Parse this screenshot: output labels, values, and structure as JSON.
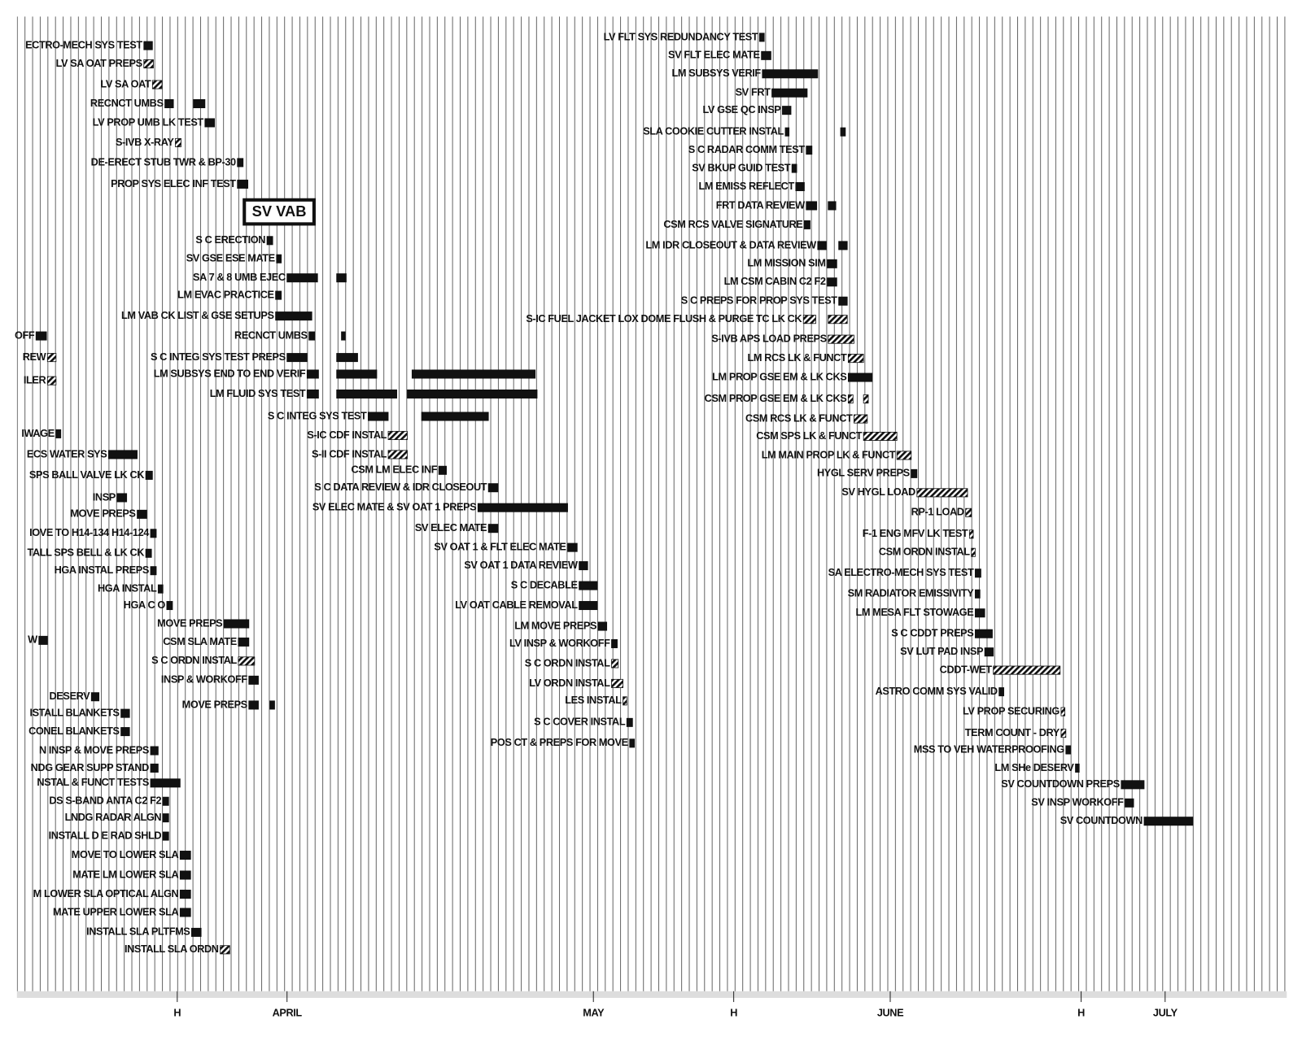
{
  "chart_data": {
    "type": "gantt",
    "stamp": "SV VAB",
    "xlim": [
      0,
      133
    ],
    "bar_color": "#111111",
    "xticks": [
      {
        "value": 16.8,
        "label": "H"
      },
      {
        "value": 28.3,
        "label": "APRIL"
      },
      {
        "value": 60.4,
        "label": "MAY"
      },
      {
        "value": 75.1,
        "label": "H"
      },
      {
        "value": 91.5,
        "label": "JUNE"
      },
      {
        "value": 111.5,
        "label": "H"
      },
      {
        "value": 120.3,
        "label": "JULY"
      }
    ],
    "tasks": [
      {
        "name": "ECTRO-MECH SYS TEST",
        "segments": [
          [
            13.3,
            14.2
          ]
        ]
      },
      {
        "name": "LV SA OAT PREPS",
        "segments": [
          [
            13.3,
            14.3
          ]
        ],
        "hatched": true
      },
      {
        "name": "LV SA OAT",
        "segments": [
          [
            14.2,
            15.2
          ]
        ],
        "hatched": true
      },
      {
        "name": "RECNCT UMBS",
        "segments": [
          [
            15.5,
            16.4
          ],
          [
            18.5,
            19.7
          ]
        ]
      },
      {
        "name": "LV PROP UMB LK TEST",
        "segments": [
          [
            19.7,
            20.7
          ]
        ]
      },
      {
        "name": "S-IVB X-RAY",
        "segments": [
          [
            16.6,
            17.2
          ]
        ],
        "hatched": true
      },
      {
        "name": "DE-ERECT STUB TWR & BP-30",
        "segments": [
          [
            23.1,
            23.7
          ]
        ]
      },
      {
        "name": "PROP SYS ELEC INF TEST",
        "segments": [
          [
            23.1,
            24.2
          ]
        ]
      },
      {
        "name": "S C ERECTION",
        "segments": [
          [
            26.2,
            26.8
          ]
        ]
      },
      {
        "name": "SV GSE ESE MATE",
        "segments": [
          [
            27.2,
            27.7
          ]
        ]
      },
      {
        "name": "SA 7 & 8 UMB EJEC",
        "segments": [
          [
            28.3,
            31.5
          ],
          [
            33.5,
            34.5
          ]
        ]
      },
      {
        "name": "LM EVAC PRACTICE",
        "segments": [
          [
            27.1,
            27.7
          ]
        ]
      },
      {
        "name": "LM VAB CK LIST & GSE SETUPS",
        "segments": [
          [
            27.1,
            30.9
          ]
        ]
      },
      {
        "name": "RECNCT UMBS",
        "segments": [
          [
            30.6,
            31.2
          ],
          [
            34.0,
            34.4
          ]
        ]
      },
      {
        "name": "S C INTEG SYS TEST PREPS",
        "segments": [
          [
            28.3,
            30.4
          ],
          [
            33.5,
            35.7
          ]
        ]
      },
      {
        "name": "LM SUBSYS END TO END VERIF",
        "segments": [
          [
            30.4,
            31.6
          ],
          [
            33.5,
            37.7
          ],
          [
            41.4,
            54.3
          ]
        ]
      },
      {
        "name": "LM FLUID SYS TEST",
        "segments": [
          [
            30.4,
            31.6
          ],
          [
            33.5,
            39.8
          ],
          [
            40.9,
            54.5
          ]
        ]
      },
      {
        "name": "S C INTEG SYS TEST",
        "segments": [
          [
            36.8,
            38.9
          ],
          [
            42.4,
            49.4
          ]
        ]
      },
      {
        "name": "S-IC CDF INSTAL",
        "segments": [
          [
            38.9,
            40.9
          ]
        ],
        "hatched": true
      },
      {
        "name": "S-II CDF INSTAL",
        "segments": [
          [
            38.9,
            40.9
          ]
        ],
        "hatched": true
      },
      {
        "name": "CSM LM ELEC INF",
        "segments": [
          [
            44.2,
            45.0
          ]
        ]
      },
      {
        "name": "S C DATA REVIEW & IDR CLOSEOUT",
        "segments": [
          [
            49.4,
            50.4
          ]
        ]
      },
      {
        "name": "SV ELEC MATE & SV OAT 1 PREPS",
        "segments": [
          [
            48.3,
            57.7
          ]
        ]
      },
      {
        "name": "SV ELEC MATE",
        "segments": [
          [
            49.4,
            50.4
          ]
        ]
      },
      {
        "name": "SV OAT 1 & FLT ELEC MATE",
        "segments": [
          [
            57.7,
            58.7
          ]
        ]
      },
      {
        "name": "SV OAT 1 DATA REVIEW",
        "segments": [
          [
            58.9,
            59.8
          ]
        ]
      },
      {
        "name": "S C DECABLE",
        "segments": [
          [
            58.9,
            60.8
          ]
        ]
      },
      {
        "name": "LV OAT CABLE REMOVAL",
        "segments": [
          [
            58.9,
            60.8
          ]
        ]
      },
      {
        "name": "LM MOVE PREPS",
        "segments": [
          [
            60.9,
            61.8
          ]
        ]
      },
      {
        "name": "LV INSP & WORKOFF",
        "segments": [
          [
            62.3,
            62.9
          ]
        ]
      },
      {
        "name": "S C ORDN INSTAL",
        "segments": [
          [
            62.3,
            63.0
          ]
        ],
        "hatched": true
      },
      {
        "name": "LV ORDN INSTAL",
        "segments": [
          [
            62.3,
            63.5
          ]
        ],
        "hatched": true
      },
      {
        "name": "LES INSTAL",
        "segments": [
          [
            63.5,
            63.9
          ]
        ],
        "hatched": true
      },
      {
        "name": "S C COVER INSTAL",
        "segments": [
          [
            63.9,
            64.5
          ]
        ]
      },
      {
        "name": "POS CT & PREPS FOR MOVE",
        "segments": [
          [
            64.2,
            64.7
          ]
        ]
      },
      {
        "name": "OFF",
        "segments": [
          [
            2.0,
            3.1
          ]
        ]
      },
      {
        "name": "REW",
        "segments": [
          [
            3.2,
            4.1
          ]
        ],
        "hatched": true
      },
      {
        "name": "ILER",
        "segments": [
          [
            3.2,
            4.1
          ]
        ],
        "hatched": true
      },
      {
        "name": "IWAGE",
        "segments": [
          [
            4.1,
            4.6
          ]
        ]
      },
      {
        "name": "ECS WATER SYS",
        "segments": [
          [
            9.6,
            12.6
          ]
        ]
      },
      {
        "name": "SPS BALL VALVE LK CK",
        "segments": [
          [
            13.5,
            14.2
          ]
        ]
      },
      {
        "name": "INSP",
        "segments": [
          [
            10.5,
            11.5
          ]
        ]
      },
      {
        "name": "MOVE PREPS",
        "segments": [
          [
            12.6,
            13.6
          ]
        ]
      },
      {
        "name": "IOVE TO H14-134 H14-124",
        "segments": [
          [
            14.0,
            14.6
          ]
        ]
      },
      {
        "name": "TALL SPS BELL & LK CK",
        "segments": [
          [
            13.5,
            14.1
          ]
        ]
      },
      {
        "name": "HGA INSTAL PREPS",
        "segments": [
          [
            14.0,
            14.6
          ]
        ]
      },
      {
        "name": "HGA INSTAL",
        "segments": [
          [
            14.8,
            15.3
          ]
        ]
      },
      {
        "name": "HGA C O",
        "segments": [
          [
            15.7,
            16.3
          ]
        ]
      },
      {
        "name": "MOVE PREPS",
        "segments": [
          [
            21.7,
            24.3
          ]
        ]
      },
      {
        "name": "CSM SLA MATE",
        "segments": [
          [
            23.2,
            24.3
          ]
        ]
      },
      {
        "name": "S C ORDN INSTAL",
        "segments": [
          [
            23.2,
            24.9
          ]
        ],
        "hatched": true
      },
      {
        "name": "INSP & WORKOFF",
        "segments": [
          [
            24.3,
            25.3
          ]
        ]
      },
      {
        "name": "MOVE PREPS",
        "segments": [
          [
            24.3,
            25.3
          ],
          [
            26.5,
            27.0
          ]
        ]
      },
      {
        "name": "W",
        "segments": [
          [
            2.3,
            3.2
          ]
        ]
      },
      {
        "name": "DESERV",
        "segments": [
          [
            7.8,
            8.6
          ]
        ]
      },
      {
        "name": "ISTALL BLANKETS",
        "segments": [
          [
            10.9,
            11.8
          ]
        ]
      },
      {
        "name": "CONEL BLANKETS",
        "segments": [
          [
            10.9,
            11.8
          ]
        ]
      },
      {
        "name": "N INSP & MOVE PREPS",
        "segments": [
          [
            14.0,
            14.8
          ]
        ]
      },
      {
        "name": "NDG GEAR SUPP STAND",
        "segments": [
          [
            14.0,
            14.8
          ]
        ]
      },
      {
        "name": "NSTAL & FUNCT TESTS",
        "segments": [
          [
            14.0,
            17.1
          ]
        ]
      },
      {
        "name": "DS S-BAND ANTA C2 F2",
        "segments": [
          [
            15.3,
            15.9
          ]
        ]
      },
      {
        "name": "LNDG RADAR ALGN",
        "segments": [
          [
            15.3,
            15.9
          ]
        ]
      },
      {
        "name": "INSTALL D E RAD SHLD",
        "segments": [
          [
            15.3,
            15.9
          ]
        ]
      },
      {
        "name": "MOVE TO LOWER SLA",
        "segments": [
          [
            17.1,
            18.2
          ]
        ]
      },
      {
        "name": "MATE LM LOWER SLA",
        "segments": [
          [
            17.1,
            18.2
          ]
        ]
      },
      {
        "name": "M LOWER SLA OPTICAL ALGN",
        "segments": [
          [
            17.1,
            18.2
          ]
        ]
      },
      {
        "name": "MATE UPPER LOWER SLA",
        "segments": [
          [
            17.1,
            18.2
          ]
        ]
      },
      {
        "name": "INSTALL SLA PLTFMS",
        "segments": [
          [
            18.3,
            19.3
          ]
        ]
      },
      {
        "name": "INSTALL SLA ORDN",
        "segments": [
          [
            21.3,
            22.3
          ]
        ],
        "hatched": true
      },
      {
        "name": "LV FLT SYS REDUNDANCY TEST",
        "segments": [
          [
            77.8,
            78.3
          ]
        ]
      },
      {
        "name": "SV FLT ELEC MATE",
        "segments": [
          [
            78.0,
            79.0
          ]
        ]
      },
      {
        "name": "LM SUBSYS VERIF",
        "segments": [
          [
            78.1,
            83.9
          ]
        ]
      },
      {
        "name": "SV FRT",
        "segments": [
          [
            79.1,
            82.8
          ]
        ]
      },
      {
        "name": "LV GSE QC INSP",
        "segments": [
          [
            80.2,
            81.1
          ]
        ]
      },
      {
        "name": "SLA COOKIE CUTTER INSTAL",
        "segments": [
          [
            80.5,
            80.9
          ],
          [
            86.3,
            86.8
          ]
        ]
      },
      {
        "name": "S C RADAR COMM TEST",
        "segments": [
          [
            82.7,
            83.3
          ]
        ]
      },
      {
        "name": "SV BKUP GUID TEST",
        "segments": [
          [
            81.2,
            81.7
          ]
        ]
      },
      {
        "name": "LM EMISS REFLECT",
        "segments": [
          [
            81.6,
            82.5
          ]
        ]
      },
      {
        "name": "FRT DATA REVIEW",
        "segments": [
          [
            82.7,
            83.8
          ],
          [
            85.0,
            85.8
          ]
        ]
      },
      {
        "name": "CSM RCS VALVE SIGNATURE",
        "segments": [
          [
            82.5,
            83.1
          ]
        ]
      },
      {
        "name": "LM IDR CLOSEOUT & DATA REVIEW",
        "segments": [
          [
            83.9,
            84.8
          ],
          [
            86.1,
            87.0
          ]
        ]
      },
      {
        "name": "LM MISSION SIM",
        "segments": [
          [
            84.9,
            85.9
          ]
        ]
      },
      {
        "name": "LM CSM CABIN C2 F2",
        "segments": [
          [
            84.9,
            85.9
          ]
        ]
      },
      {
        "name": "S C PREPS FOR PROP SYS TEST",
        "segments": [
          [
            86.1,
            87.0
          ]
        ]
      },
      {
        "name": "S-IC FUEL JACKET LOX DOME FLUSH & PURGE TC LK CK",
        "segments": [
          [
            82.4,
            83.7
          ],
          [
            85.0,
            87.0
          ]
        ],
        "hatched": true
      },
      {
        "name": "S-IVB APS LOAD PREPS",
        "segments": [
          [
            85.0,
            87.7
          ]
        ],
        "hatched": true
      },
      {
        "name": "LM RCS LK & FUNCT",
        "segments": [
          [
            87.1,
            88.7
          ]
        ],
        "hatched": true
      },
      {
        "name": "LM PROP GSE EM & LK CKS",
        "segments": [
          [
            87.1,
            89.6
          ]
        ]
      },
      {
        "name": "CSM PROP GSE EM & LK CKS",
        "segments": [
          [
            87.1,
            87.6
          ],
          [
            88.7,
            89.2
          ]
        ],
        "hatched": true
      },
      {
        "name": "CSM RCS LK & FUNCT",
        "segments": [
          [
            87.7,
            89.1
          ]
        ],
        "hatched": true
      },
      {
        "name": "CSM SPS LK & FUNCT",
        "segments": [
          [
            88.7,
            92.2
          ]
        ],
        "hatched": true
      },
      {
        "name": "LM MAIN PROP LK & FUNCT",
        "segments": [
          [
            92.2,
            93.7
          ]
        ],
        "hatched": true
      },
      {
        "name": "HYGL SERV PREPS",
        "segments": [
          [
            93.7,
            94.3
          ]
        ]
      },
      {
        "name": "SV HYGL LOAD",
        "segments": [
          [
            94.3,
            99.6
          ]
        ],
        "hatched": true
      },
      {
        "name": "RP-1 LOAD",
        "segments": [
          [
            99.4,
            100.0
          ]
        ],
        "hatched": true
      },
      {
        "name": "F-1 ENG MFV LK TEST",
        "segments": [
          [
            99.8,
            100.2
          ]
        ],
        "hatched": true
      },
      {
        "name": "CSM ORDN INSTAL",
        "segments": [
          [
            100.0,
            100.4
          ]
        ],
        "hatched": true
      },
      {
        "name": "SA ELECTRO-MECH SYS TEST",
        "segments": [
          [
            100.4,
            101.0
          ]
        ]
      },
      {
        "name": "SM RADIATOR EMISSIVITY",
        "segments": [
          [
            100.4,
            100.9
          ]
        ]
      },
      {
        "name": "LM MESA FLT STOWAGE",
        "segments": [
          [
            100.4,
            101.4
          ]
        ]
      },
      {
        "name": "S C CDDT PREPS",
        "segments": [
          [
            100.4,
            102.2
          ]
        ]
      },
      {
        "name": "SV LUT PAD INSP",
        "segments": [
          [
            101.4,
            102.3
          ]
        ]
      },
      {
        "name": "CDDT-WET",
        "segments": [
          [
            102.3,
            109.3
          ]
        ],
        "hatched": true
      },
      {
        "name": "ASTRO COMM SYS VALID",
        "segments": [
          [
            102.9,
            103.4
          ]
        ]
      },
      {
        "name": "LV PROP SECURING",
        "segments": [
          [
            109.4,
            109.8
          ]
        ],
        "hatched": true
      },
      {
        "name": "TERM COUNT - DRY",
        "segments": [
          [
            109.4,
            109.9
          ]
        ],
        "hatched": true
      },
      {
        "name": "MSS TO VEH WATERPROOFING",
        "segments": [
          [
            109.9,
            110.4
          ]
        ]
      },
      {
        "name": "LM SHe DESERV",
        "segments": [
          [
            110.9,
            111.3
          ]
        ]
      },
      {
        "name": "SV COUNTDOWN PREPS",
        "segments": [
          [
            115.7,
            118.1
          ]
        ]
      },
      {
        "name": "SV INSP WORKOFF",
        "segments": [
          [
            116.1,
            117.0
          ]
        ]
      },
      {
        "name": "SV COUNTDOWN",
        "segments": [
          [
            118.1,
            123.2
          ]
        ]
      }
    ]
  }
}
